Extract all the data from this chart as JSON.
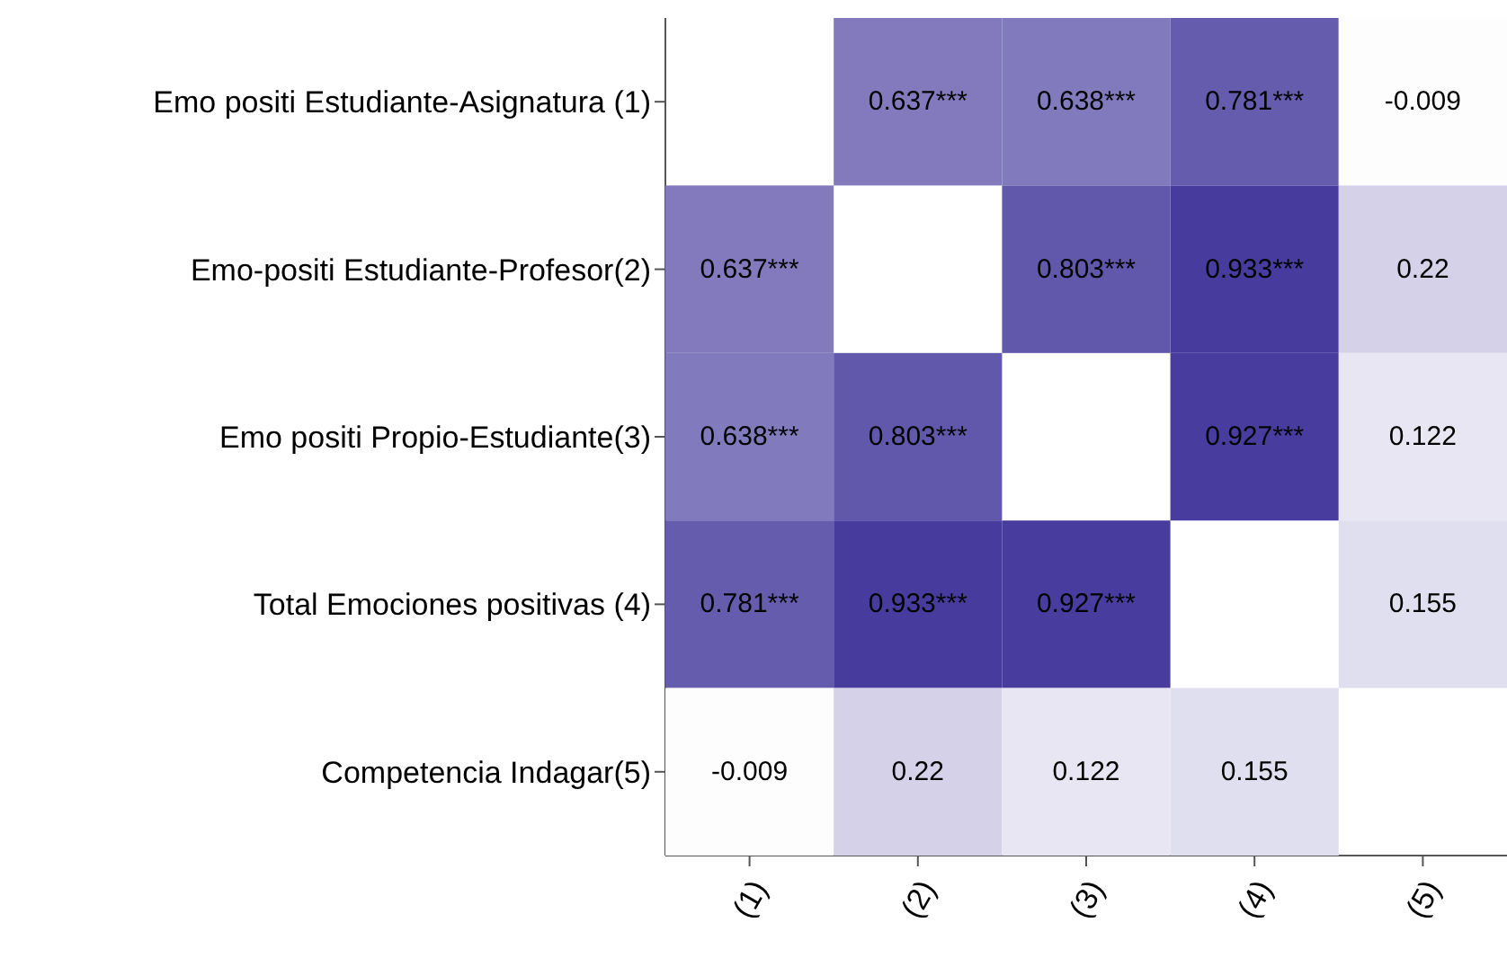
{
  "chart_data": {
    "type": "heatmap",
    "categories": [
      "(1)",
      "(2)",
      "(3)",
      "(4)",
      "(5)"
    ],
    "y_categories": [
      "Emo positi Estudiante-Asignatura (1)",
      "Emo-positi Estudiante-Profesor(2)",
      "Emo positi Propio-Estudiante(3)",
      "Total Emociones positivas (4)",
      "Competencia Indagar(5)"
    ],
    "cells": [
      [
        null,
        0.637,
        0.638,
        0.781,
        -0.009
      ],
      [
        0.637,
        null,
        0.803,
        0.933,
        0.22
      ],
      [
        0.638,
        0.803,
        null,
        0.927,
        0.122
      ],
      [
        0.781,
        0.933,
        0.927,
        null,
        0.155
      ],
      [
        -0.009,
        0.22,
        0.122,
        0.155,
        null
      ]
    ],
    "cell_labels": [
      [
        null,
        "0.637***",
        "0.638***",
        "0.781***",
        "-0.009"
      ],
      [
        "0.637***",
        null,
        "0.803***",
        "0.933***",
        "0.22"
      ],
      [
        "0.638***",
        "0.803***",
        null,
        "0.927***",
        "0.122"
      ],
      [
        "0.781***",
        "0.933***",
        "0.927***",
        null,
        "0.155"
      ],
      [
        "-0.009",
        "0.22",
        "0.122",
        "0.155",
        null
      ]
    ]
  }
}
